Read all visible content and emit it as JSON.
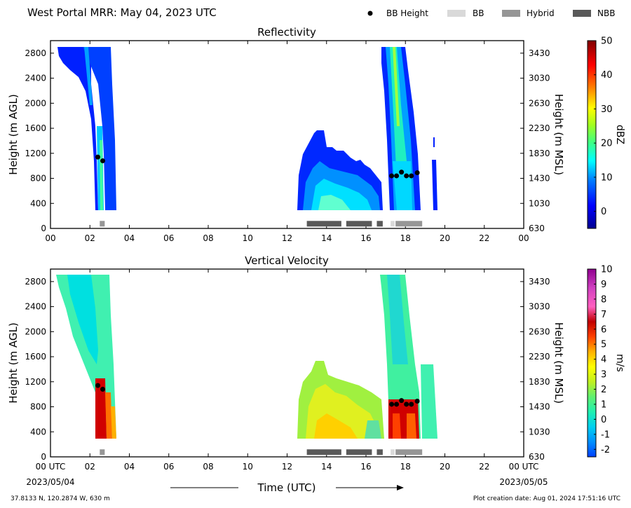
{
  "header": {
    "title": "West Portal MRR:  May 04, 2023 UTC",
    "legend": [
      {
        "label": "BB Height",
        "kind": "dot",
        "color": "#000000"
      },
      {
        "label": "BB",
        "kind": "bar",
        "color": "#d9d9d9"
      },
      {
        "label": "Hybrid",
        "kind": "bar",
        "color": "#969696"
      },
      {
        "label": "NBB",
        "kind": "bar",
        "color": "#595959"
      }
    ]
  },
  "chart_data": [
    {
      "type": "heatmap",
      "title": "Reflectivity",
      "ylabel": "Height (m AGL)",
      "ylabel_right": "Height (m MSL)",
      "xlim": [
        0,
        24
      ],
      "ylim": [
        0,
        3000
      ],
      "x_ticks": [
        "00",
        "02",
        "04",
        "06",
        "08",
        "10",
        "12",
        "14",
        "16",
        "18",
        "20",
        "22",
        "00"
      ],
      "y_ticks": [
        "0",
        "400",
        "800",
        "1200",
        "1600",
        "2000",
        "2400",
        "2800"
      ],
      "y_ticks_right": [
        "630",
        "1030",
        "1430",
        "1830",
        "2230",
        "2630",
        "3030",
        "3430"
      ],
      "colorbar": {
        "label": "dBZ",
        "range": [
          -5,
          50
        ],
        "ticks": [
          "0",
          "10",
          "20",
          "30",
          "40",
          "50"
        ]
      },
      "bb_height": [
        [
          2.4,
          1140
        ],
        [
          2.65,
          1080
        ],
        [
          17.3,
          840
        ],
        [
          17.55,
          840
        ],
        [
          17.8,
          900
        ],
        [
          18.05,
          840
        ],
        [
          18.3,
          840
        ],
        [
          18.6,
          890
        ]
      ],
      "bb_type": [
        {
          "start": 2.5,
          "end": 2.75,
          "type": "Hybrid"
        },
        {
          "start": 13.0,
          "end": 14.75,
          "type": "NBB"
        },
        {
          "start": 15.0,
          "end": 16.3,
          "type": "NBB"
        },
        {
          "start": 16.55,
          "end": 16.85,
          "type": "NBB"
        },
        {
          "start": 17.25,
          "end": 17.45,
          "type": "BB"
        },
        {
          "start": 17.5,
          "end": 18.85,
          "type": "Hybrid"
        }
      ]
    },
    {
      "type": "heatmap",
      "title": "Vertical Velocity",
      "ylabel": "Height (m AGL)",
      "ylabel_right": "Height (m MSL)",
      "xlim": [
        0,
        24
      ],
      "ylim": [
        0,
        3000
      ],
      "x_ticks": [
        "00 UTC",
        "02",
        "04",
        "06",
        "08",
        "10",
        "12",
        "14",
        "16",
        "18",
        "20",
        "22",
        "00 UTC"
      ],
      "y_ticks": [
        "0",
        "400",
        "800",
        "1200",
        "1600",
        "2000",
        "2400",
        "2800"
      ],
      "y_ticks_right": [
        "630",
        "1030",
        "1430",
        "1830",
        "2230",
        "2630",
        "3030",
        "3430"
      ],
      "x_date_start": "2023/05/04",
      "x_date_end": "2023/05/05",
      "xlabel": "Time (UTC)",
      "colorbar": {
        "label": "m/s",
        "range": [
          -2.5,
          10
        ],
        "ticks": [
          "-2",
          "-1",
          "0",
          "1",
          "2",
          "3",
          "4",
          "5",
          "6",
          "7",
          "8",
          "9",
          "10"
        ]
      },
      "bb_height": [
        [
          2.4,
          1140
        ],
        [
          2.65,
          1080
        ],
        [
          17.3,
          840
        ],
        [
          17.55,
          840
        ],
        [
          17.8,
          900
        ],
        [
          18.05,
          840
        ],
        [
          18.3,
          840
        ],
        [
          18.6,
          890
        ]
      ],
      "bb_type": [
        {
          "start": 2.5,
          "end": 2.75,
          "type": "Hybrid"
        },
        {
          "start": 13.0,
          "end": 14.75,
          "type": "NBB"
        },
        {
          "start": 15.0,
          "end": 16.3,
          "type": "NBB"
        },
        {
          "start": 16.55,
          "end": 16.85,
          "type": "NBB"
        },
        {
          "start": 17.25,
          "end": 17.45,
          "type": "BB"
        },
        {
          "start": 17.5,
          "end": 18.85,
          "type": "Hybrid"
        }
      ]
    }
  ],
  "footer": {
    "location": "37.8133 N, 120.2874 W, 630 m",
    "created": "Plot creation date: Aug 01, 2024 17:51:16 UTC"
  }
}
